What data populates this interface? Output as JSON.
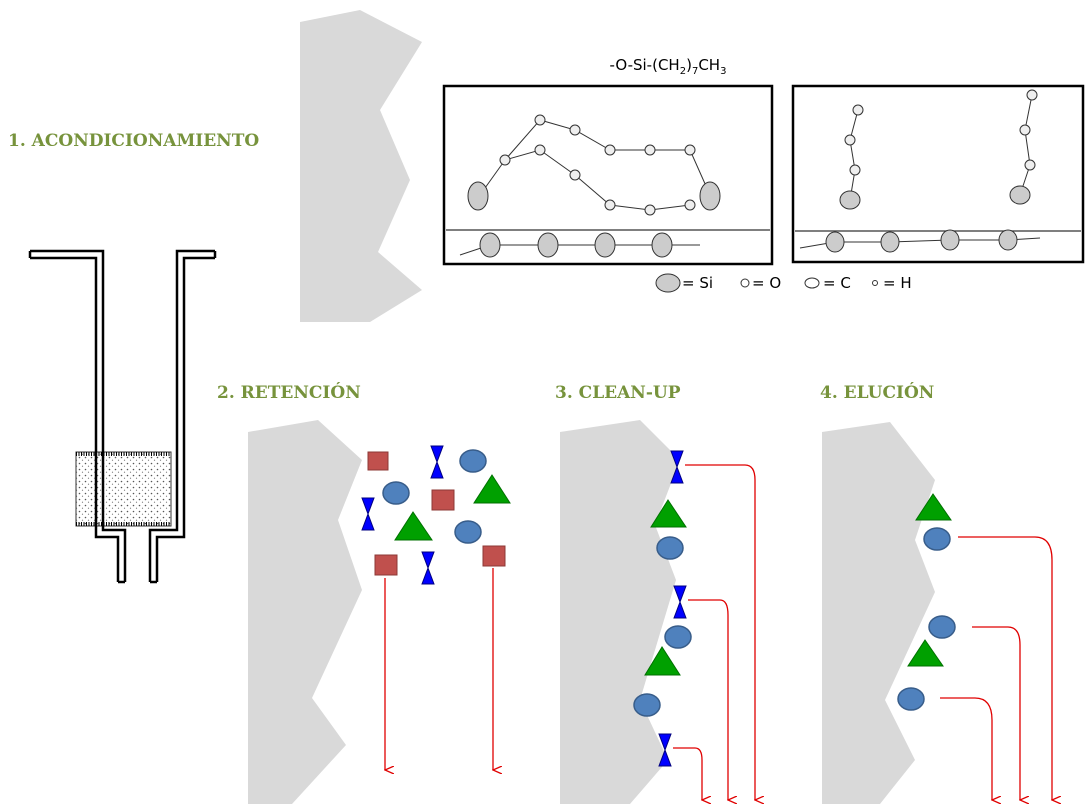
{
  "steps": [
    "1. ACONDICIONAMIENTO",
    "2. RETENCIÓN",
    "3. CLEAN-UP",
    "4. ELUCIÓN"
  ],
  "formula": [
    "-O-Si-(CH",
    "2",
    ")",
    "7",
    "CH",
    "3"
  ],
  "legend": [
    "= Si",
    "= O",
    "= C",
    "= H"
  ]
}
